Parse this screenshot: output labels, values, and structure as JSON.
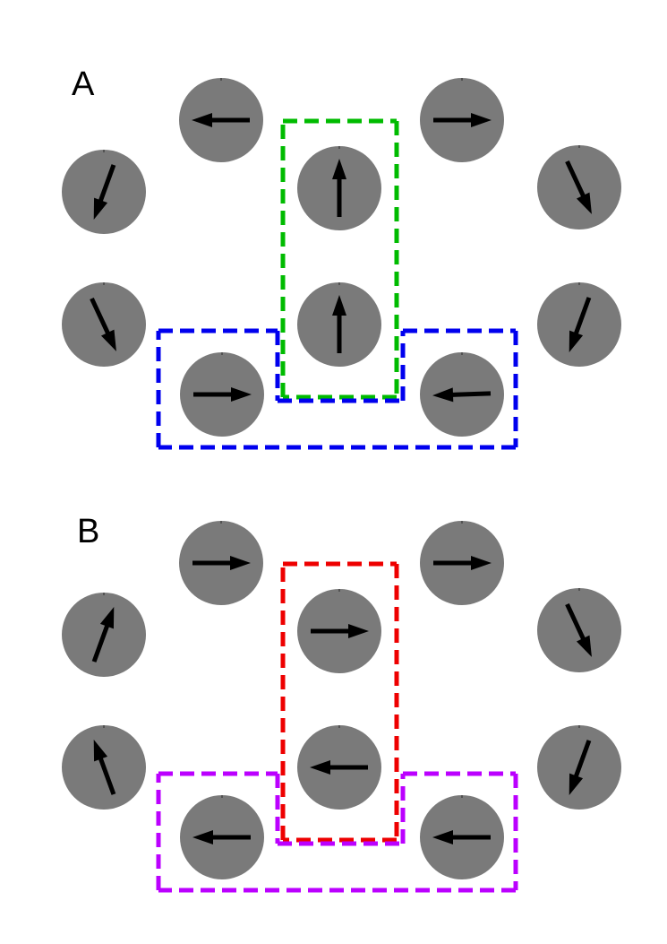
{
  "panels": [
    {
      "label": "A",
      "dials": [
        {
          "id": "top-left",
          "angle_deg": 270
        },
        {
          "id": "top-right",
          "angle_deg": 90
        },
        {
          "id": "upper-outer-left",
          "angle_deg": 200
        },
        {
          "id": "upper-center",
          "angle_deg": 0
        },
        {
          "id": "upper-outer-right",
          "angle_deg": 155
        },
        {
          "id": "lower-outer-left",
          "angle_deg": 155
        },
        {
          "id": "lower-center",
          "angle_deg": 0
        },
        {
          "id": "lower-outer-right",
          "angle_deg": 200
        },
        {
          "id": "bottom-left",
          "angle_deg": 90
        },
        {
          "id": "bottom-right",
          "angle_deg": 268
        }
      ],
      "groups": [
        {
          "id": "vertical-pair",
          "color": "#00bb00"
        },
        {
          "id": "bottom-row",
          "color": "#0000ee"
        }
      ]
    },
    {
      "label": "B",
      "dials": [
        {
          "id": "top-left",
          "angle_deg": 90
        },
        {
          "id": "top-right",
          "angle_deg": 90
        },
        {
          "id": "upper-outer-left",
          "angle_deg": 20
        },
        {
          "id": "upper-center",
          "angle_deg": 90
        },
        {
          "id": "upper-outer-right",
          "angle_deg": 155
        },
        {
          "id": "lower-outer-left",
          "angle_deg": 340
        },
        {
          "id": "lower-center",
          "angle_deg": 270
        },
        {
          "id": "lower-outer-right",
          "angle_deg": 200
        },
        {
          "id": "bottom-left",
          "angle_deg": 270
        },
        {
          "id": "bottom-right",
          "angle_deg": 270
        }
      ],
      "groups": [
        {
          "id": "vertical-pair",
          "color": "#ee0000"
        },
        {
          "id": "bottom-row",
          "color": "#bb00ff"
        }
      ]
    }
  ]
}
